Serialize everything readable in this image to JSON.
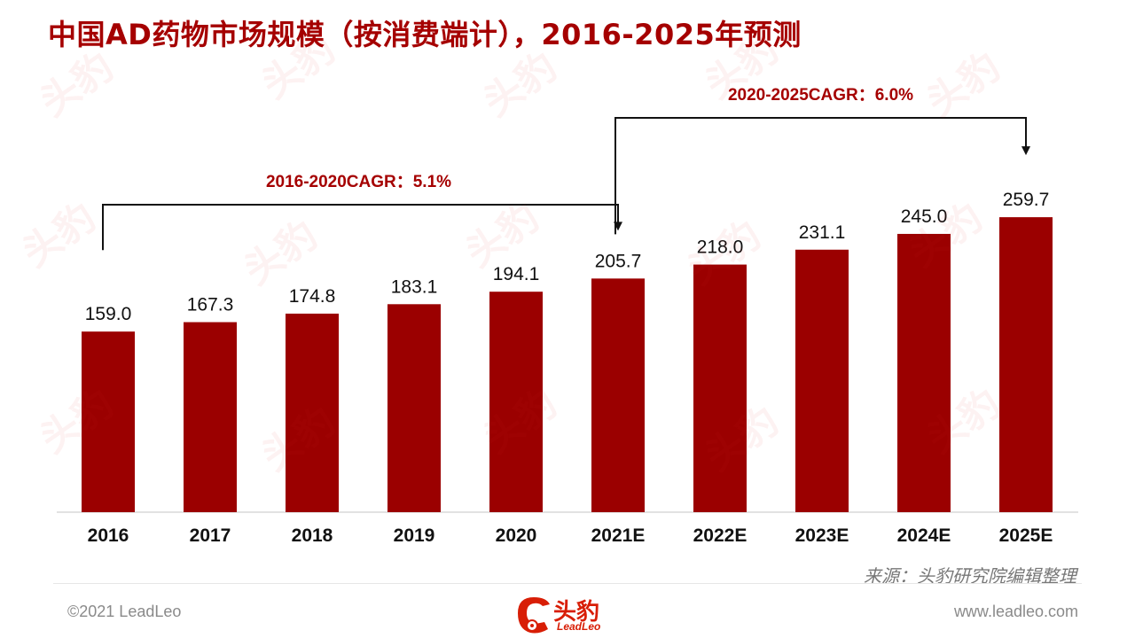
{
  "title": "中国AD药物市场规模（按消费端计），2016-2025年预测",
  "source": "来源：头豹研究院编辑整理",
  "footer": {
    "copyright": "©2021 LeadLeo",
    "website": "www.leadleo.com",
    "logo_cn": "头豹",
    "logo_en": "LeadLeo"
  },
  "watermark_text": "头豹",
  "colors": {
    "bar": "#9b0000",
    "title": "#a50000",
    "annotation": "#a50000"
  },
  "chart_data": {
    "type": "bar",
    "categories": [
      "2016",
      "2017",
      "2018",
      "2019",
      "2020",
      "2021E",
      "2022E",
      "2023E",
      "2024E",
      "2025E"
    ],
    "values": [
      159.0,
      167.3,
      174.8,
      183.1,
      194.1,
      205.7,
      218.0,
      231.1,
      245.0,
      259.7
    ],
    "value_labels": [
      "159.0",
      "167.3",
      "174.8",
      "183.1",
      "194.1",
      "205.7",
      "218.0",
      "231.1",
      "245.0",
      "259.7"
    ],
    "title": "中国AD药物市场规模（按消费端计），2016-2025年预测",
    "xlabel": "",
    "ylabel": "",
    "ylim": [
      0,
      330
    ],
    "grid": false,
    "legend": "none",
    "annotations": [
      {
        "text": "2016-2020CAGR：5.1%",
        "from": "2016",
        "to": "2021E"
      },
      {
        "text": "2020-2025CAGR：6.0%",
        "from": "2021E",
        "to": "2025E"
      }
    ]
  }
}
